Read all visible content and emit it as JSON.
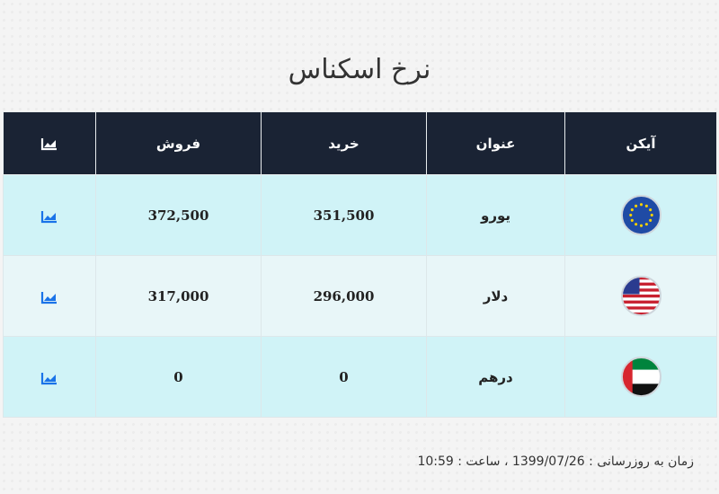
{
  "title": "نرخ اسکناس",
  "table": {
    "headers": {
      "icon": "آیکن",
      "name": "عنوان",
      "buy": "خرید",
      "sell": "فروش",
      "chart_icon": "chart-icon"
    },
    "rows": [
      {
        "flag_icon": "eu-flag-icon",
        "name": "یورو",
        "buy": "351,500",
        "sell": "372,500",
        "chart_icon": "chart-icon"
      },
      {
        "flag_icon": "us-flag-icon",
        "name": "دلار",
        "buy": "296,000",
        "sell": "317,000",
        "chart_icon": "chart-icon"
      },
      {
        "flag_icon": "uae-flag-icon",
        "name": "درهم",
        "buy": "0",
        "sell": "0",
        "chart_icon": "chart-icon"
      }
    ]
  },
  "footer": {
    "text": "زمان به روزرسانی : 1399/07/26 ، ساعت : 10:59"
  },
  "colors": {
    "header_bg": "#1a2334",
    "row_a": "#d0f3f7",
    "row_b": "#e8f6f8",
    "accent": "#1a73e8"
  }
}
